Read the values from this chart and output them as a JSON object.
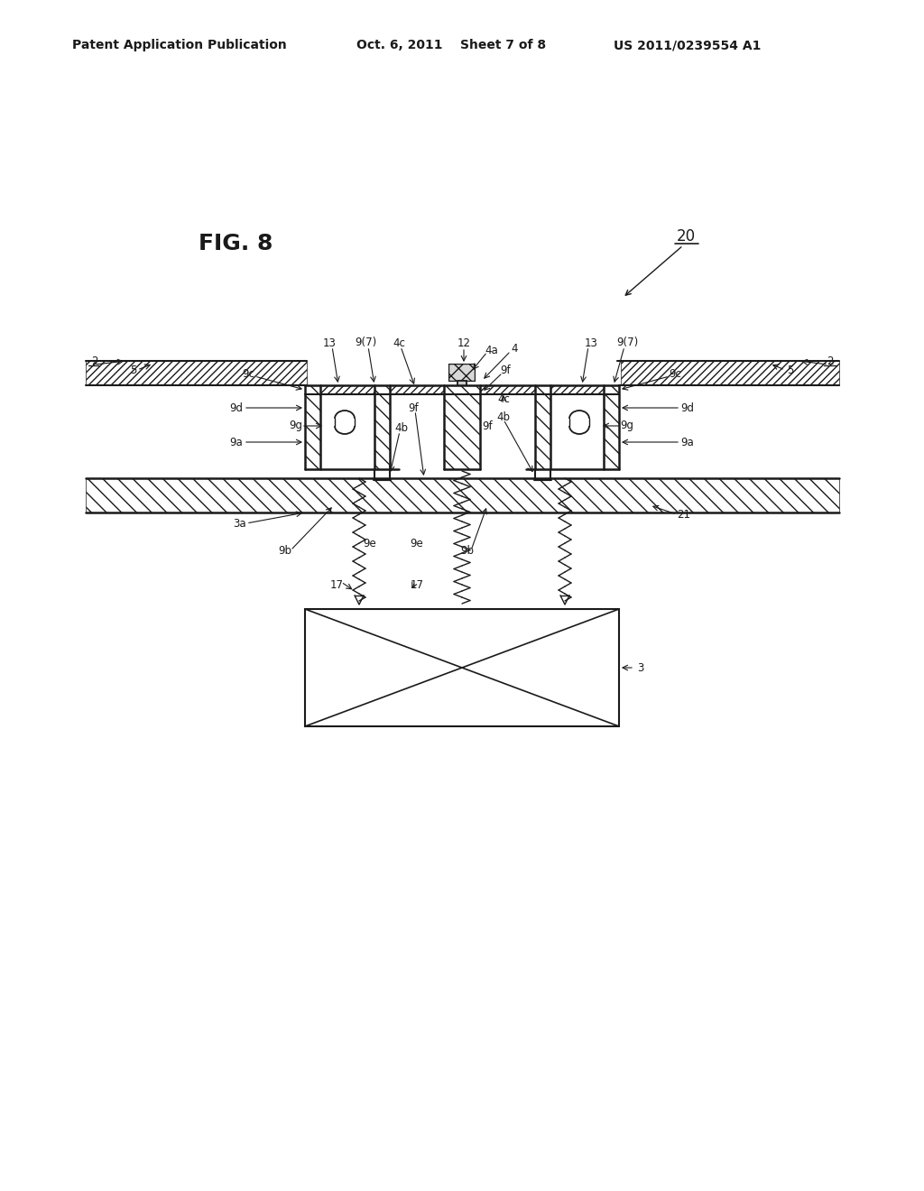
{
  "bg_color": "#ffffff",
  "line_color": "#1a1a1a",
  "header_text": "Patent Application Publication",
  "header_date": "Oct. 6, 2011",
  "header_sheet": "Sheet 7 of 8",
  "header_patent": "US 2011/0239554 A1",
  "fig_label": "FIG. 8",
  "fig_number": "20"
}
